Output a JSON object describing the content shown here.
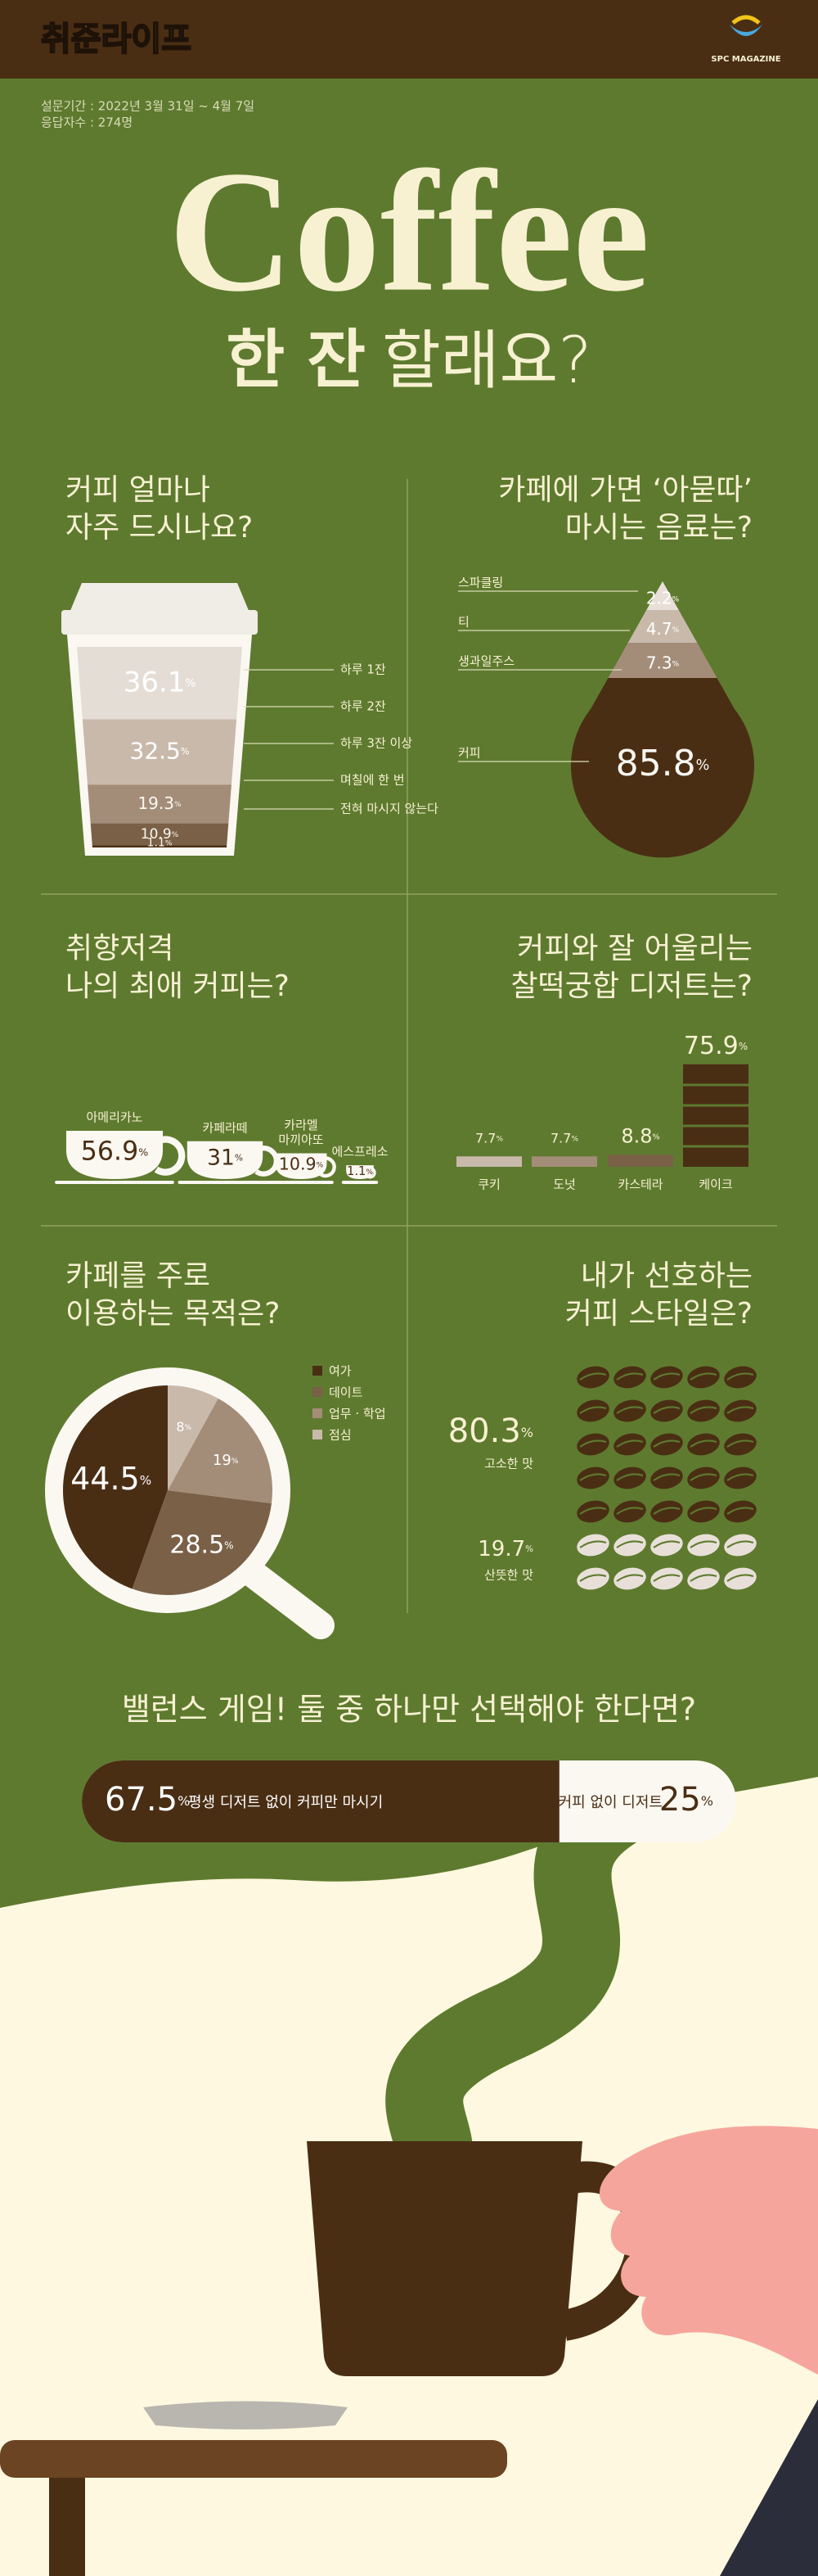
{
  "header": {
    "brand": "취준라이프",
    "logo": "SPC MAGAZINE"
  },
  "survey": [
    "설문기간 : 2022년 3월 31일 ~ 4월 7일",
    "응답자수 : 274명"
  ],
  "title": "Coffee",
  "subtitle": {
    "bold": "한 잔",
    "light": "할래요?"
  },
  "unit": "%",
  "frequency": {
    "question": [
      "커피 얼마나",
      "자주 드시나요?"
    ],
    "items": [
      {
        "label": "하루 1잔",
        "value": 36.1
      },
      {
        "label": "하루 2잔",
        "value": 32.5
      },
      {
        "label": "하루 3잔 이상",
        "value": 19.3
      },
      {
        "label": "며칠에 한 번",
        "value": 10.9
      },
      {
        "label": "전혀 마시지 않는다",
        "value": 1.1
      }
    ]
  },
  "drinks": {
    "question": [
      "카페에 가면 ‘아묻따’",
      "마시는 음료는?"
    ],
    "items": [
      {
        "label": "스파클링",
        "value": 2.2
      },
      {
        "label": "티",
        "value": 4.7
      },
      {
        "label": "생과일주스",
        "value": 7.3
      },
      {
        "label": "커피",
        "value": 85.8
      }
    ]
  },
  "favorite": {
    "question": [
      "취향저격",
      "나의 최애 커피는?"
    ],
    "items": [
      {
        "label": [
          "아메리카노"
        ],
        "value": 56.9
      },
      {
        "label": [
          "카페라떼"
        ],
        "value": 31
      },
      {
        "label": [
          "카라멜",
          "마끼아또"
        ],
        "value": 10.9
      },
      {
        "label": [
          "에스프레소"
        ],
        "value": 1.1
      }
    ]
  },
  "dessert": {
    "question": [
      "커피와 잘 어울리는",
      "찰떡궁합 디저트는?"
    ],
    "items": [
      {
        "label": "쿠키",
        "value": 7.7
      },
      {
        "label": "도넛",
        "value": 7.7
      },
      {
        "label": "카스테라",
        "value": 8.8
      },
      {
        "label": "케이크",
        "value": 75.9
      }
    ]
  },
  "purpose": {
    "question": [
      "카페를 주로",
      "이용하는 목적은?"
    ],
    "items": [
      {
        "label": "여가",
        "value": 44.5,
        "color": "#4a2e14"
      },
      {
        "label": "데이트",
        "value": 28.5,
        "color": "#7a6047"
      },
      {
        "label": "업무 · 학업",
        "value": 19,
        "color": "#a48d78"
      },
      {
        "label": "점심",
        "value": 8,
        "color": "#c9b9ab"
      }
    ]
  },
  "style": {
    "question": [
      "내가 선호하는",
      "커피 스타일은?"
    ],
    "items": [
      {
        "label": "고소한 맛",
        "value": 80.3
      },
      {
        "label": "산뜻한 맛",
        "value": 19.7
      }
    ]
  },
  "balance": {
    "question": "밸런스 게임! 둘 중 하나만 선택해야 한다면?",
    "items": [
      {
        "label": "평생 디저트 없이 커피만 마시기",
        "value": 67.5
      },
      {
        "label": "평생 커피 없이 디저트",
        "value": 25
      }
    ]
  }
}
